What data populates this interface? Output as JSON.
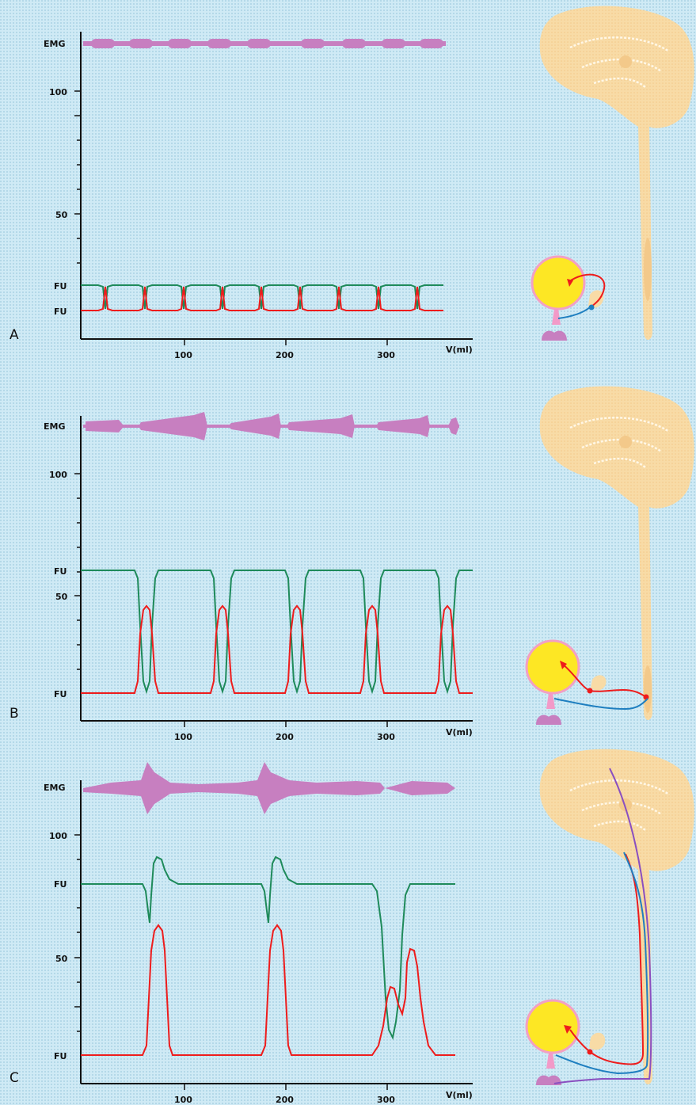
{
  "panels": [
    {
      "letter": "A",
      "emg_label": "EMG",
      "y_ticks": [
        "100",
        "50"
      ],
      "fu_labels": [
        "FU",
        "FU"
      ],
      "x_ticks": [
        "100",
        "200",
        "300"
      ],
      "x_axis_label": "V(ml)"
    },
    {
      "letter": "B",
      "emg_label": "EMG",
      "y_ticks": [
        "100",
        "50"
      ],
      "fu_labels": [
        "FU",
        "FU"
      ],
      "x_ticks": [
        "100",
        "200",
        "300"
      ],
      "x_axis_label": "V(ml)"
    },
    {
      "letter": "C",
      "emg_label": "EMG",
      "y_ticks": [
        "100",
        "50"
      ],
      "fu_labels": [
        "FU",
        "FU"
      ],
      "x_ticks": [
        "100",
        "200",
        "300"
      ],
      "x_axis_label": "V(ml)"
    }
  ],
  "colors": {
    "background": "#cfeaf5",
    "emg": "#c77fc0",
    "green_trace": "#1e8a5a",
    "red_trace": "#ee1c1c",
    "brain": "#f8dba6",
    "bladder": "#fde724",
    "bladder_edge": "#f2a0c4",
    "nerve_blue": "#1f7fc0",
    "nerve_purple": "#8a4fc0",
    "urethra": "#f29ac8"
  }
}
